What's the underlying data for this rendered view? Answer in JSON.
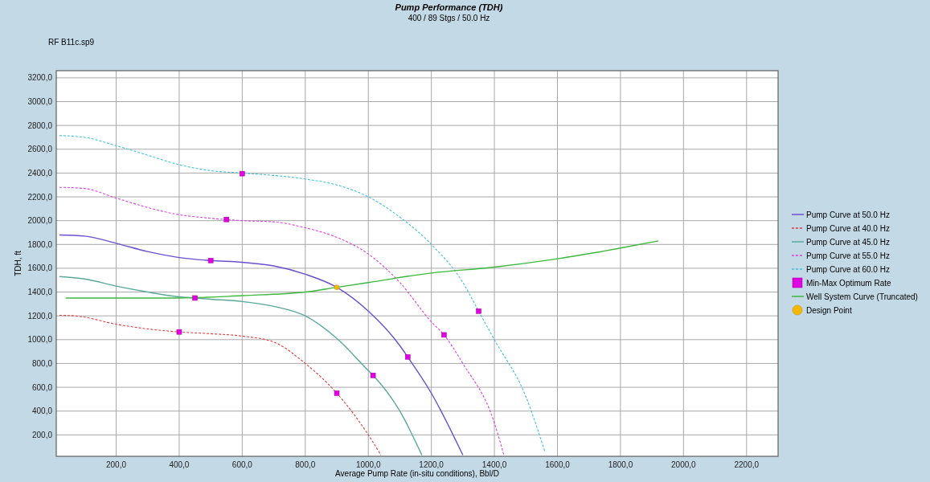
{
  "chart_data": {
    "type": "line",
    "title": "Pump Performance (TDH)",
    "subtitle": "400 / 89 Stgs / 50.0 Hz",
    "annotations": [
      "RF B11c.sp9"
    ],
    "xlabel": "Average Pump Rate (in-situ conditions), Bbl/D",
    "ylabel": "TDH, ft",
    "xlim": [
      10,
      2300
    ],
    "ylim": [
      20,
      3260
    ],
    "xticks": [
      {
        "value": 200,
        "label": "200,0"
      },
      {
        "value": 400,
        "label": "400,0"
      },
      {
        "value": 600,
        "label": "600,0"
      },
      {
        "value": 800,
        "label": "800,0"
      },
      {
        "value": 1000,
        "label": "1000,0"
      },
      {
        "value": 1200,
        "label": "1200,0"
      },
      {
        "value": 1400,
        "label": "1400,0"
      },
      {
        "value": 1600,
        "label": "1600,0"
      },
      {
        "value": 1800,
        "label": "1800,0"
      },
      {
        "value": 2000,
        "label": "2000,0"
      },
      {
        "value": 2200,
        "label": "2200,0"
      }
    ],
    "yticks": [
      {
        "value": 200,
        "label": "200,0"
      },
      {
        "value": 400,
        "label": "400,0"
      },
      {
        "value": 600,
        "label": "600,0"
      },
      {
        "value": 800,
        "label": "800,0"
      },
      {
        "value": 1000,
        "label": "1000,0"
      },
      {
        "value": 1200,
        "label": "1200,0"
      },
      {
        "value": 1400,
        "label": "1400,0"
      },
      {
        "value": 1600,
        "label": "1600,0"
      },
      {
        "value": 1800,
        "label": "1800,0"
      },
      {
        "value": 2000,
        "label": "2000,0"
      },
      {
        "value": 2200,
        "label": "2200,0"
      },
      {
        "value": 2400,
        "label": "2400,0"
      },
      {
        "value": 2600,
        "label": "2600,0"
      },
      {
        "value": 2800,
        "label": "2800,0"
      },
      {
        "value": 3000,
        "label": "3000,0"
      },
      {
        "value": 3200,
        "label": "3200,0"
      }
    ],
    "grid": true,
    "legend": "right",
    "series": [
      {
        "name": "Pump Curve at 50.0 Hz",
        "color": "#6a4fd0",
        "line_style": "solid",
        "x": [
          20,
          100,
          200,
          300,
          400,
          500,
          600,
          700,
          800,
          900,
          1000,
          1100,
          1125,
          1200,
          1300
        ],
        "values": [
          1880,
          1870,
          1810,
          1740,
          1690,
          1665,
          1650,
          1620,
          1550,
          1440,
          1240,
          950,
          855,
          550,
          30
        ]
      },
      {
        "name": "Pump Curve at 40.0 Hz",
        "color": "#e03c3c",
        "line_style": "dashed",
        "x": [
          20,
          70,
          200,
          300,
          400,
          500,
          600,
          700,
          800,
          900,
          1000,
          1040
        ],
        "values": [
          1205,
          1200,
          1130,
          1090,
          1065,
          1050,
          1030,
          980,
          800,
          550,
          200,
          30
        ]
      },
      {
        "name": "Pump Curve at 45.0 Hz",
        "color": "#5aa89a",
        "line_style": "solid",
        "x": [
          20,
          100,
          200,
          300,
          400,
          450,
          500,
          600,
          700,
          800,
          900,
          1000,
          1015,
          1100,
          1170
        ],
        "values": [
          1530,
          1510,
          1450,
          1400,
          1360,
          1350,
          1340,
          1320,
          1280,
          1200,
          1010,
          740,
          700,
          400,
          30
        ]
      },
      {
        "name": "Pump Curve at 55.0 Hz",
        "color": "#e040e0",
        "line_style": "dashed",
        "x": [
          20,
          100,
          200,
          300,
          400,
          500,
          600,
          700,
          800,
          900,
          1000,
          1100,
          1200,
          1240,
          1300,
          1400,
          1430
        ],
        "values": [
          2280,
          2270,
          2190,
          2110,
          2050,
          2020,
          2000,
          1990,
          1940,
          1860,
          1720,
          1480,
          1150,
          1040,
          800,
          300,
          30
        ]
      },
      {
        "name": "Pump Curve at 60.0 Hz",
        "color": "#40c0e0",
        "line_style": "dashed",
        "x": [
          20,
          100,
          200,
          300,
          400,
          500,
          600,
          700,
          800,
          900,
          1000,
          1100,
          1200,
          1300,
          1350,
          1400,
          1500,
          1560
        ],
        "values": [
          2715,
          2700,
          2630,
          2550,
          2470,
          2420,
          2400,
          2380,
          2350,
          2300,
          2200,
          2030,
          1800,
          1480,
          1240,
          1000,
          520,
          60
        ]
      },
      {
        "name": "Min-Max Optimum Rate",
        "type": "scatter",
        "marker": "square",
        "color": "#e000e0",
        "x": [
          400,
          900,
          450,
          1015,
          500,
          1125,
          550,
          1240,
          600,
          1350
        ],
        "values": [
          1065,
          550,
          1350,
          700,
          1665,
          855,
          2010,
          1040,
          2395,
          1240
        ]
      },
      {
        "name": "Well System Curve (Truncated)",
        "color": "#3cb83c",
        "line_style": "solid",
        "x": [
          40,
          400,
          600,
          800,
          900,
          1000,
          1200,
          1400,
          1600,
          1800,
          1920
        ],
        "values": [
          1350,
          1350,
          1370,
          1400,
          1440,
          1480,
          1560,
          1610,
          1680,
          1770,
          1830
        ]
      },
      {
        "name": "Design Point",
        "type": "scatter",
        "marker": "circle",
        "color": "#f5b800",
        "x": [
          900
        ],
        "values": [
          1440
        ]
      }
    ]
  }
}
